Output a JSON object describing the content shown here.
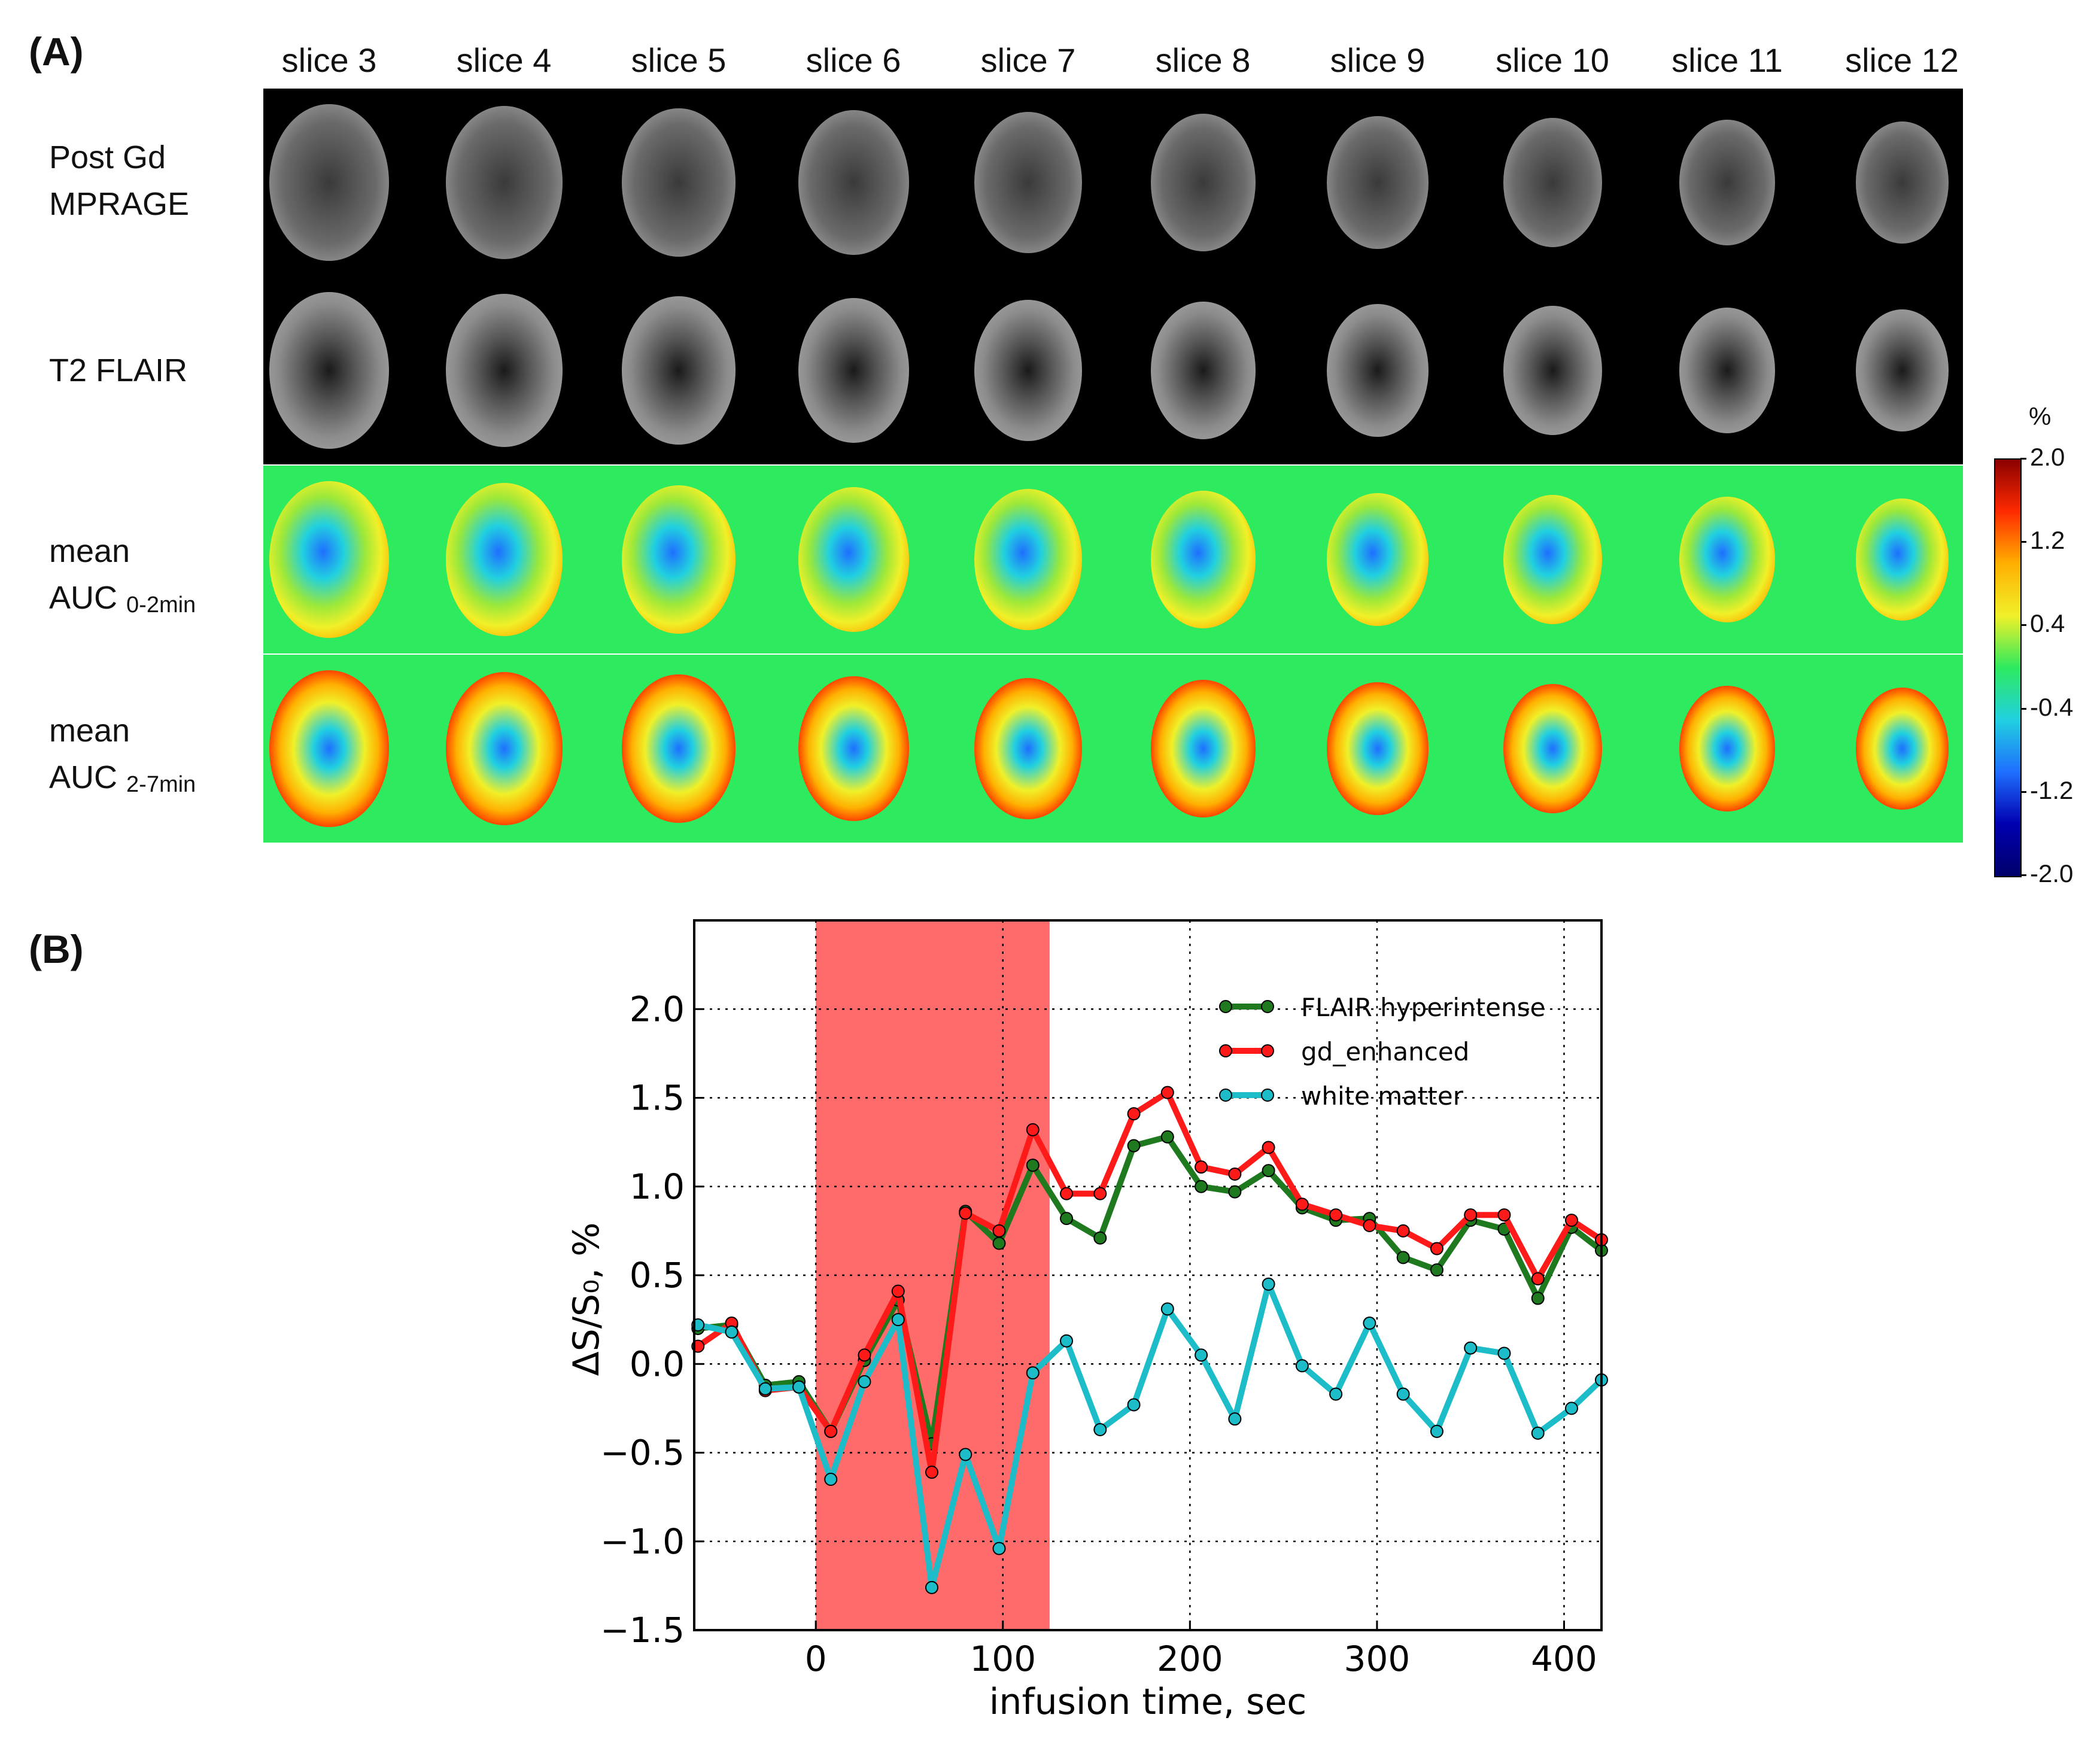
{
  "panel_a": {
    "label": "(A)",
    "slices": [
      "slice 3",
      "slice 4",
      "slice 5",
      "slice 6",
      "slice 7",
      "slice 8",
      "slice 9",
      "slice 10",
      "slice 11",
      "slice 12"
    ],
    "rows": [
      {
        "line1": "Post Gd",
        "line2": "MPRAGE",
        "sub": ""
      },
      {
        "line1": "T2 FLAIR",
        "line2": "",
        "sub": ""
      },
      {
        "line1": "mean",
        "line2": "AUC",
        "sub": "0-2min"
      },
      {
        "line1": "mean",
        "line2": "AUC",
        "sub": "2-7min"
      }
    ],
    "colorbar": {
      "unit": "%",
      "ticks": [
        "2.0",
        "1.2",
        "0.4",
        "-0.4",
        "-1.2",
        "-2.0"
      ],
      "colors": [
        "#8b0000",
        "#ff2a00",
        "#ffb000",
        "#f0f028",
        "#2dea5f",
        "#20d0e0",
        "#1f6fff",
        "#0000b0",
        "#00006a"
      ]
    }
  },
  "panel_b": {
    "label": "(B)"
  },
  "chart_data": {
    "type": "line",
    "xlabel": "infusion time, sec",
    "ylabel": "ΔS/S₀, %",
    "xlim": [
      -65,
      420
    ],
    "ylim": [
      -1.5,
      2.5
    ],
    "xticks": [
      0,
      100,
      200,
      300,
      400
    ],
    "yticks": [
      -1.5,
      -1.0,
      -0.5,
      0.0,
      0.5,
      1.0,
      1.5,
      2.0
    ],
    "ytick_labels": [
      "−1.5",
      "−1.0",
      "−0.5",
      "0.0",
      "0.5",
      "1.0",
      "1.5",
      "2.0"
    ],
    "grid": true,
    "legend_position": "top-right",
    "shaded_region": {
      "x0": 0,
      "x1": 125,
      "color": "#ff6a6a"
    },
    "x": [
      -63,
      -45,
      -27,
      -9,
      8,
      26,
      44,
      62,
      80,
      98,
      116,
      134,
      152,
      170,
      188,
      206,
      224,
      242,
      260,
      278,
      296,
      314,
      332,
      350,
      368,
      386,
      404,
      420
    ],
    "series": [
      {
        "name": "FLAIR hyperintense",
        "color": "#1f7a1f",
        "values": [
          0.2,
          0.22,
          -0.12,
          -0.1,
          -0.38,
          0.02,
          0.36,
          -0.45,
          0.86,
          0.68,
          1.12,
          0.82,
          0.71,
          1.23,
          1.28,
          1.0,
          0.97,
          1.09,
          0.88,
          0.81,
          0.82,
          0.6,
          0.53,
          0.81,
          0.76,
          0.37,
          0.77,
          0.64
        ]
      },
      {
        "name": "gd_enhanced",
        "color": "#ff1a1a",
        "values": [
          0.1,
          0.23,
          -0.15,
          -0.13,
          -0.38,
          0.05,
          0.41,
          -0.61,
          0.85,
          0.75,
          1.32,
          0.96,
          0.96,
          1.41,
          1.53,
          1.11,
          1.07,
          1.22,
          0.9,
          0.84,
          0.78,
          0.75,
          0.65,
          0.84,
          0.84,
          0.48,
          0.81,
          0.7
        ]
      },
      {
        "name": "white matter",
        "color": "#1cbcc8",
        "values": [
          0.22,
          0.18,
          -0.14,
          -0.13,
          -0.65,
          -0.1,
          0.25,
          -1.26,
          -0.51,
          -1.04,
          -0.05,
          0.13,
          -0.37,
          -0.23,
          0.31,
          0.05,
          -0.31,
          0.45,
          -0.01,
          -0.17,
          0.23,
          -0.17,
          -0.38,
          0.09,
          0.06,
          -0.39,
          -0.25,
          -0.09
        ]
      }
    ]
  }
}
